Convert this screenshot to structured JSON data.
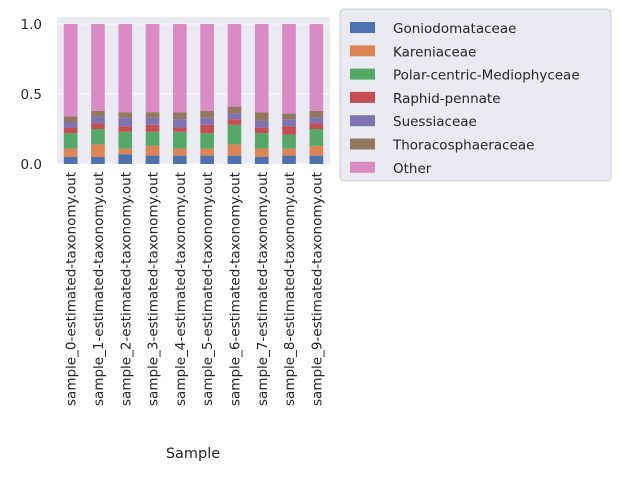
{
  "chart_data": {
    "type": "bar",
    "stacked": true,
    "title": "",
    "xlabel": "Sample",
    "ylabel": "",
    "ylim": [
      0,
      1.05
    ],
    "yticks": [
      0.0,
      0.5,
      1.0
    ],
    "ytick_labels": [
      "0.0",
      "0.5",
      "1.0"
    ],
    "grid": true,
    "legend_position": "outside right, top",
    "background": "#eaeaf2",
    "categories": [
      "sample_0-estimated-taxonomy.out",
      "sample_1-estimated-taxonomy.out",
      "sample_2-estimated-taxonomy.out",
      "sample_3-estimated-taxonomy.out",
      "sample_4-estimated-taxonomy.out",
      "sample_5-estimated-taxonomy.out",
      "sample_6-estimated-taxonomy.out",
      "sample_7-estimated-taxonomy.out",
      "sample_8-estimated-taxonomy.out",
      "sample_9-estimated-taxonomy.out"
    ],
    "series": [
      {
        "name": "Goniodomataceae",
        "color": "#4c72b0",
        "values": [
          0.05,
          0.05,
          0.07,
          0.06,
          0.06,
          0.06,
          0.06,
          0.05,
          0.06,
          0.06
        ]
      },
      {
        "name": "Kareniaceae",
        "color": "#dd8452",
        "values": [
          0.06,
          0.09,
          0.04,
          0.07,
          0.05,
          0.05,
          0.08,
          0.06,
          0.05,
          0.07
        ]
      },
      {
        "name": "Polar-centric-Mediophyceae",
        "color": "#55a868",
        "values": [
          0.11,
          0.11,
          0.12,
          0.1,
          0.12,
          0.11,
          0.14,
          0.11,
          0.1,
          0.12
        ]
      },
      {
        "name": "Raphid-pennate",
        "color": "#c44e52",
        "values": [
          0.04,
          0.04,
          0.04,
          0.05,
          0.03,
          0.06,
          0.04,
          0.04,
          0.06,
          0.04
        ]
      },
      {
        "name": "Suessiaceae",
        "color": "#8172b3",
        "values": [
          0.04,
          0.05,
          0.06,
          0.05,
          0.06,
          0.05,
          0.04,
          0.05,
          0.05,
          0.04
        ]
      },
      {
        "name": "Thoracosphaeraceae",
        "color": "#937860",
        "values": [
          0.04,
          0.04,
          0.04,
          0.04,
          0.05,
          0.05,
          0.05,
          0.06,
          0.04,
          0.05
        ]
      },
      {
        "name": "Other",
        "color": "#da8bc3",
        "values": [
          0.66,
          0.62,
          0.63,
          0.63,
          0.63,
          0.62,
          0.59,
          0.63,
          0.64,
          0.62
        ]
      }
    ]
  }
}
